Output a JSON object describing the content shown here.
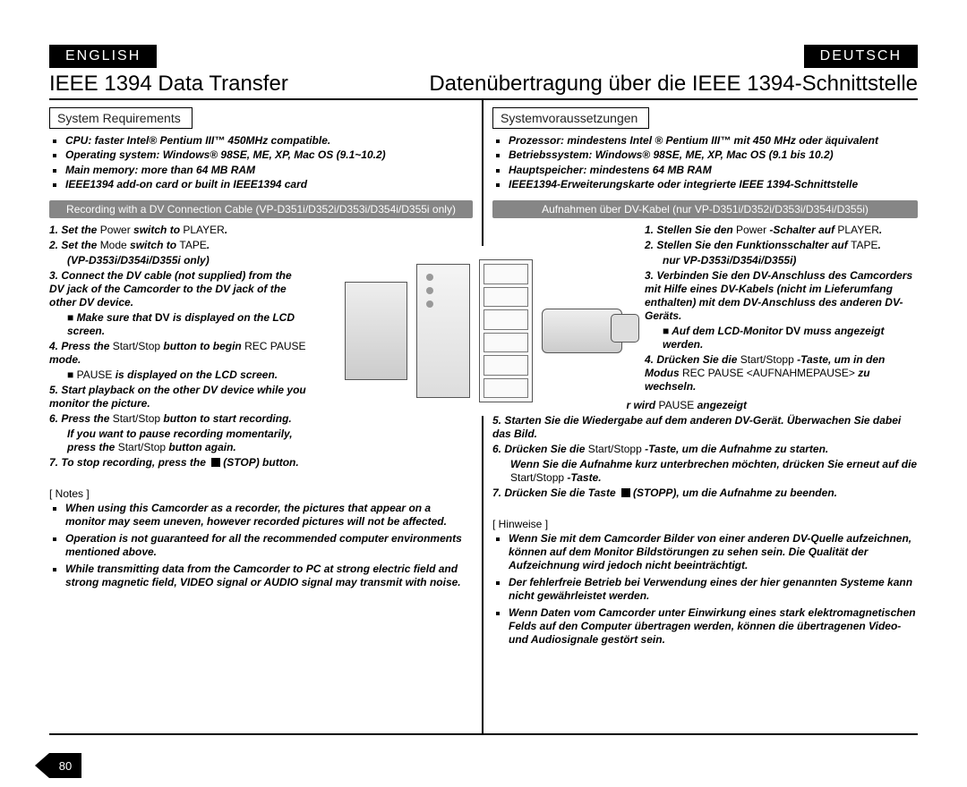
{
  "lang_en_label": "ENGLISH",
  "lang_de_label": "DEUTSCH",
  "title_en": "IEEE 1394 Data Transfer",
  "title_de": "Datenübertragung über die IEEE 1394-Schnittstelle",
  "page_number": "80",
  "en": {
    "sys_req_heading": "System Requirements",
    "sys_req": {
      "li1": "CPU: faster Intel® Pentium III™ 450MHz compatible.",
      "li2": "Operating system: Windows® 98SE, ME, XP, Mac OS (9.1~10.2)",
      "li3": "Main memory: more than 64 MB RAM",
      "li4": "IEEE1394 add-on card or built in IEEE1394 card"
    },
    "rec_banner": "Recording with a DV Connection Cable (VP-D351i/D352i/D353i/D354i/D355i only)",
    "inst": {
      "l1a": "1. Set the ",
      "l1b": "Power",
      "l1c": " switch to ",
      "l1d": "PLAYER",
      "l1e": ".",
      "l2a": "2. Set the ",
      "l2b": "Mode",
      "l2c": " switch to ",
      "l2d": "TAPE",
      "l2e": ".",
      "l2f": "(VP-D353i/D354i/D355i only)",
      "l3": "3. Connect the DV cable (not supplied) from the DV jack of the Camcorder to the DV jack of the other DV device.",
      "l3b_pre": "Make sure that ",
      "l3b_post": " is displayed on the LCD screen.",
      "l4a": "4. Press the ",
      "l4b": "Start/Stop",
      "l4c": " button to begin ",
      "l4d": "REC PAUSE",
      "l4e": " mode.",
      "l4f_pre": "",
      "l4f_mid": "PAUSE",
      "l4f_post": " is displayed on the LCD screen.",
      "l5": "5. Start playback on the other DV device while you monitor the picture.",
      "l6a": "6. Press the ",
      "l6b": "Start/Stop",
      "l6c": " button to start recording.",
      "l6d_pre": "If you want to pause recording momentarily, press the ",
      "l6d_mid": "Start/Stop",
      "l6d_post": " button again.",
      "l7a": "7. To stop recording, press the ",
      "l7b": "(STOP) button."
    },
    "notes_label": "[ Notes ]",
    "notes": {
      "n1": "When using this Camcorder as a recorder, the pictures that appear on a monitor may seem uneven, however recorded pictures will not be affected.",
      "n2": "Operation is not guaranteed for all the recommended computer environments mentioned above.",
      "n3": "While transmitting data from the Camcorder to PC at strong electric field and strong magnetic field, VIDEO signal or AUDIO signal may transmit with noise."
    }
  },
  "de": {
    "sys_req_heading": "Systemvoraussetzungen",
    "sys_req": {
      "li1": "Prozessor: mindestens Intel ® Pentium III™ mit 450 MHz oder äquivalent",
      "li2": "Betriebssystem: Windows® 98SE, ME, XP, Mac OS (9.1 bis 10.2)",
      "li3": "Hauptspeicher: mindestens 64 MB RAM",
      "li4": "IEEE1394-Erweiterungskarte oder integrierte IEEE 1394-Schnittstelle"
    },
    "rec_banner": "Aufnahmen über DV-Kabel (nur VP-D351i/D352i/D353i/D354i/D355i)",
    "inst": {
      "l1a": "1. Stellen Sie den ",
      "l1b": "Power",
      "l1c": " -Schalter auf ",
      "l1d": "PLAYER",
      "l1e": ".",
      "l2a": "2. Stellen Sie den Funktionsschalter auf ",
      "l2b": "TAPE",
      "l2c": ".",
      "l2d": "nur VP-D353i/D354i/D355i)",
      "l3": "3. Verbinden Sie den DV-Anschluss des Camcorders mit Hilfe eines DV-Kabels (nicht im Lieferumfang enthalten) mit dem DV-Anschluss des anderen DV-Geräts.",
      "l3b_pre": "Auf dem LCD-Monitor ",
      "l3b_post": " muss angezeigt werden.",
      "l4a": "4. Drücken Sie die ",
      "l4b": "Start/Stopp",
      "l4c": " -Taste, um in den Modus ",
      "l4d": "REC PAUSE <AUFNAHMEPAUSE>",
      "l4e": " zu wechseln.",
      "l4f_pre": "Auf dem LCD-Monitor wird ",
      "l4f_mid": "PAUSE",
      "l4f_post": " angezeigt",
      "l5": "5. Starten Sie die Wiedergabe auf dem anderen DV-Gerät. Überwachen Sie dabei das Bild.",
      "l6a": "6. Drücken Sie die ",
      "l6b": "Start/Stopp",
      "l6c": " -Taste, um die Aufnahme zu starten.",
      "l6d_pre": "Wenn Sie die Aufnahme kurz unterbrechen möchten, drücken Sie erneut auf die ",
      "l6d_mid": "Start/Stopp",
      "l6d_post": " -Taste.",
      "l7a": "7. Drücken Sie die Taste ",
      "l7b": "(STOPP), um die Aufnahme zu beenden."
    },
    "notes_label": "[ Hinweise ]",
    "notes": {
      "n1": "Wenn Sie mit dem Camcorder Bilder von einer anderen DV-Quelle aufzeichnen, können auf dem Monitor Bildstörungen zu sehen sein. Die Qualität der Aufzeichnung wird jedoch nicht beeinträchtigt.",
      "n2": "Der fehlerfreie Betrieb bei Verwendung eines der hier genannten Systeme kann nicht gewährleistet werden.",
      "n3": "Wenn Daten vom Camcorder unter Einwirkung eines stark elektromagnetischen Felds auf den Computer übertragen werden, können die übertragenen Video- und Audiosignale gestört sein."
    }
  },
  "dv_icon_text": "DV"
}
